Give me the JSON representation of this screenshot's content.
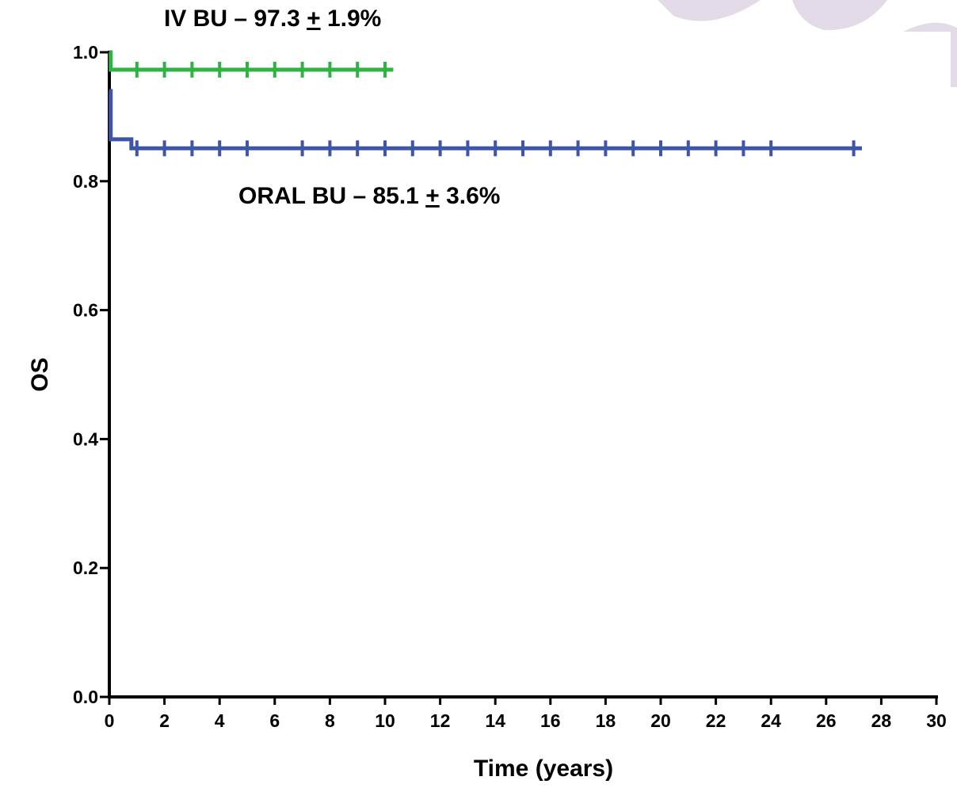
{
  "chart_data": {
    "type": "line",
    "subtype": "kaplan-meier",
    "title": "",
    "xlabel": "Time (years)",
    "ylabel": "OS",
    "xlim": [
      0,
      30
    ],
    "ylim": [
      0,
      1.0
    ],
    "x_ticks": [
      "0",
      "2",
      "4",
      "6",
      "8",
      "10",
      "12",
      "14",
      "16",
      "18",
      "20",
      "22",
      "24",
      "26",
      "28",
      "30"
    ],
    "y_ticks": [
      "0.0",
      "0.2",
      "0.4",
      "0.6",
      "0.8",
      "1.0"
    ],
    "grid": false,
    "legend": "none",
    "series": [
      {
        "color": "#2fb443",
        "steps": [
          [
            0,
            1.0
          ],
          [
            0.05,
            0.973
          ],
          [
            10.3,
            0.973
          ]
        ],
        "censor_x": [
          1,
          2,
          3,
          4,
          5,
          6,
          7,
          8,
          9,
          10
        ]
      },
      {
        "color": "#3f55a8",
        "steps": [
          [
            0,
            0.94
          ],
          [
            0.05,
            0.865
          ],
          [
            0.8,
            0.851
          ],
          [
            27.3,
            0.851
          ]
        ],
        "censor_x": [
          1,
          2,
          3,
          4,
          5,
          7,
          8,
          9,
          10,
          11,
          12,
          13,
          14,
          15,
          16,
          17,
          18,
          19,
          20,
          21,
          22,
          23,
          24,
          27
        ]
      }
    ],
    "annotations": [
      {
        "id": "iv",
        "prefix": "IV BU – 97.3 ",
        "pm": "+",
        "suffix": " 1.9%"
      },
      {
        "id": "oral",
        "prefix": "ORAL BU – 85.1 ",
        "pm": "+",
        "suffix": "  3.6%"
      }
    ]
  }
}
